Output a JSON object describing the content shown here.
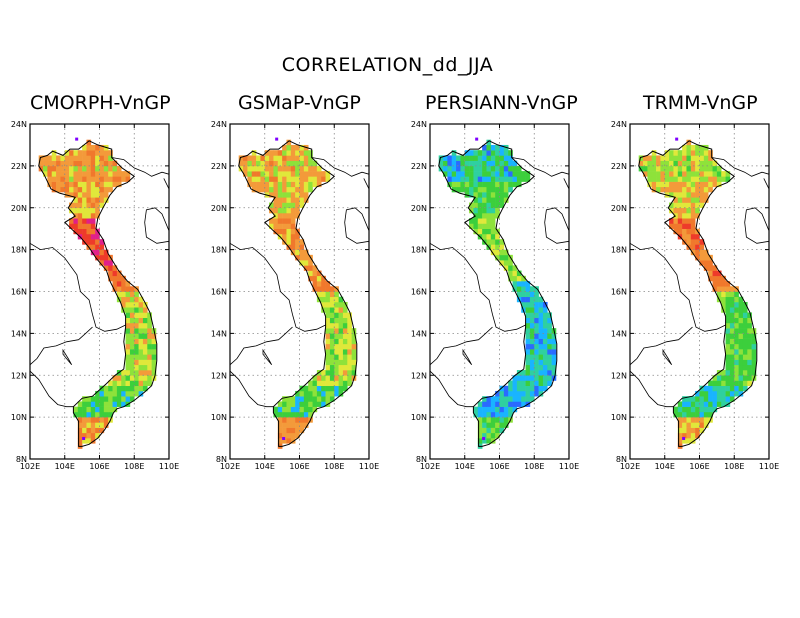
{
  "figure": {
    "title": "CORRELATION_dd_JJA"
  },
  "panels": [
    {
      "title": "CMORPH-VnGP",
      "scheme": "cmorph"
    },
    {
      "title": "GSMaP-VnGP",
      "scheme": "gsmap"
    },
    {
      "title": "PERSIANN-VnGP",
      "scheme": "persiann"
    },
    {
      "title": "TRMM-VnGP",
      "scheme": "trmm"
    }
  ],
  "axes": {
    "x_ticks": [
      "102E",
      "104E",
      "106E",
      "108E",
      "110E"
    ],
    "x_values": [
      102,
      104,
      106,
      108,
      110
    ],
    "y_ticks": [
      "8N",
      "10N",
      "12N",
      "14N",
      "16N",
      "18N",
      "20N",
      "22N",
      "24N"
    ],
    "y_values": [
      8,
      10,
      12,
      14,
      16,
      18,
      20,
      22,
      24
    ],
    "lon_range": [
      102,
      110
    ],
    "lat_range": [
      8,
      24
    ],
    "grid": "dotted"
  },
  "colors": {
    "purple": "#7f00ff",
    "blue": "#2a6bff",
    "cyan": "#19b4ff",
    "teal": "#2fd0a0",
    "green": "#3ccf3c",
    "light_green": "#8ee23a",
    "yellow": "#e0e83a",
    "orange": "#f39a3a",
    "deep_orange": "#f0782c",
    "red": "#ee3a2a",
    "magenta": "#e0208a"
  }
}
